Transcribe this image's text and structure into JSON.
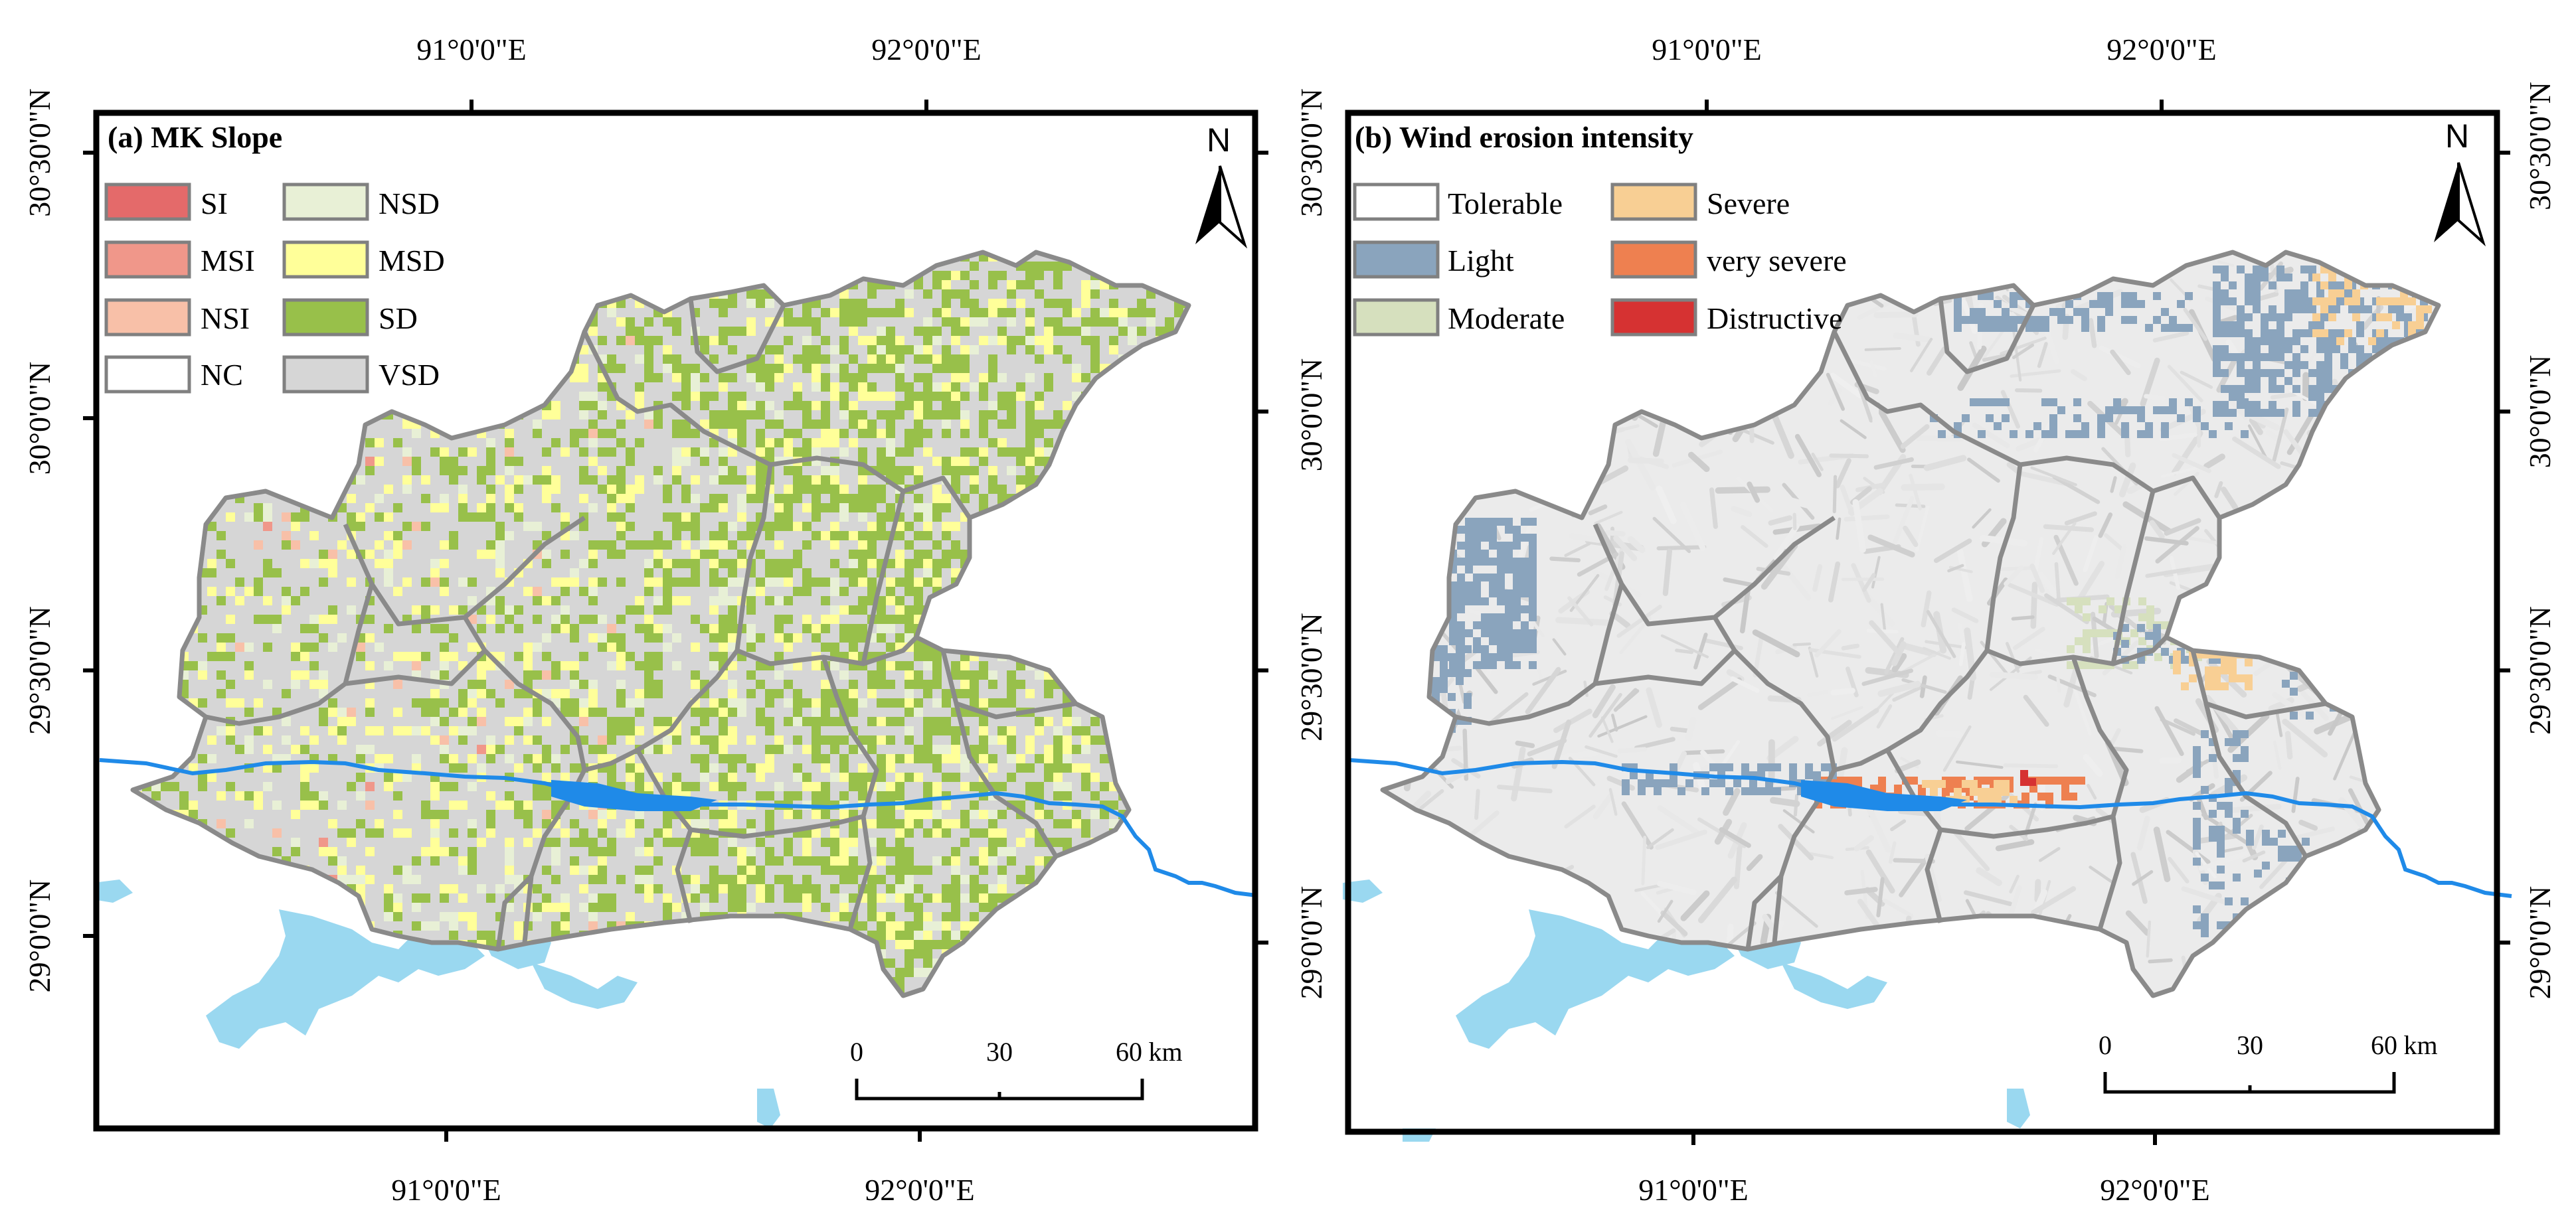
{
  "panels": [
    {
      "title": "(a) MK Slope",
      "north": "N",
      "top_ticks": [
        "91°0'0\"E",
        "92°0'0\"E"
      ],
      "bottom_ticks": [
        "91°0'0\"E",
        "92°0'0\"E"
      ],
      "side_ticks": [
        "30°30'0\"N",
        "30°0'0\"N",
        "29°30'0\"N",
        "29°0'0\"N"
      ],
      "scale_labels": [
        "0",
        "30",
        "60"
      ],
      "scale_unit": "km",
      "legend": [
        {
          "label": "SI",
          "color": "#e46a6a"
        },
        {
          "label": "MSI",
          "color": "#f0978a"
        },
        {
          "label": "NSI",
          "color": "#f8c0a8"
        },
        {
          "label": "NC",
          "color": "#ffffff"
        },
        {
          "label": "NSD",
          "color": "#e8f0d6"
        },
        {
          "label": "MSD",
          "color": "#ffff99"
        },
        {
          "label": "SD",
          "color": "#98c04a"
        },
        {
          "label": "VSD",
          "color": "#d6d6d6"
        }
      ]
    },
    {
      "title": "(b) Wind erosion intensity",
      "north": "N",
      "top_ticks": [
        "91°0'0\"E",
        "92°0'0\"E"
      ],
      "bottom_ticks": [
        "91°0'0\"E",
        "92°0'0\"E"
      ],
      "side_ticks": [
        "30°30'0\"N",
        "30°0'0\"N",
        "29°30'0\"N",
        "29°0'0\"N"
      ],
      "scale_labels": [
        "0",
        "30",
        "60"
      ],
      "scale_unit": "km",
      "legend": [
        {
          "label": "Tolerable",
          "color": "#ffffff"
        },
        {
          "label": "Light",
          "color": "#8aa4bd"
        },
        {
          "label": "Moderate",
          "color": "#d6e0be"
        },
        {
          "label": "Severe",
          "color": "#f8cf94"
        },
        {
          "label": "very severe",
          "color": "#ee8050"
        },
        {
          "label": "Distructive",
          "color": "#d63232"
        }
      ]
    }
  ],
  "colors": {
    "frame": "#000000",
    "boundary": "#8a8a8a",
    "river": "#1f8ae8",
    "lake": "#9ad8f0",
    "hillshade": "#e9e9e9"
  }
}
